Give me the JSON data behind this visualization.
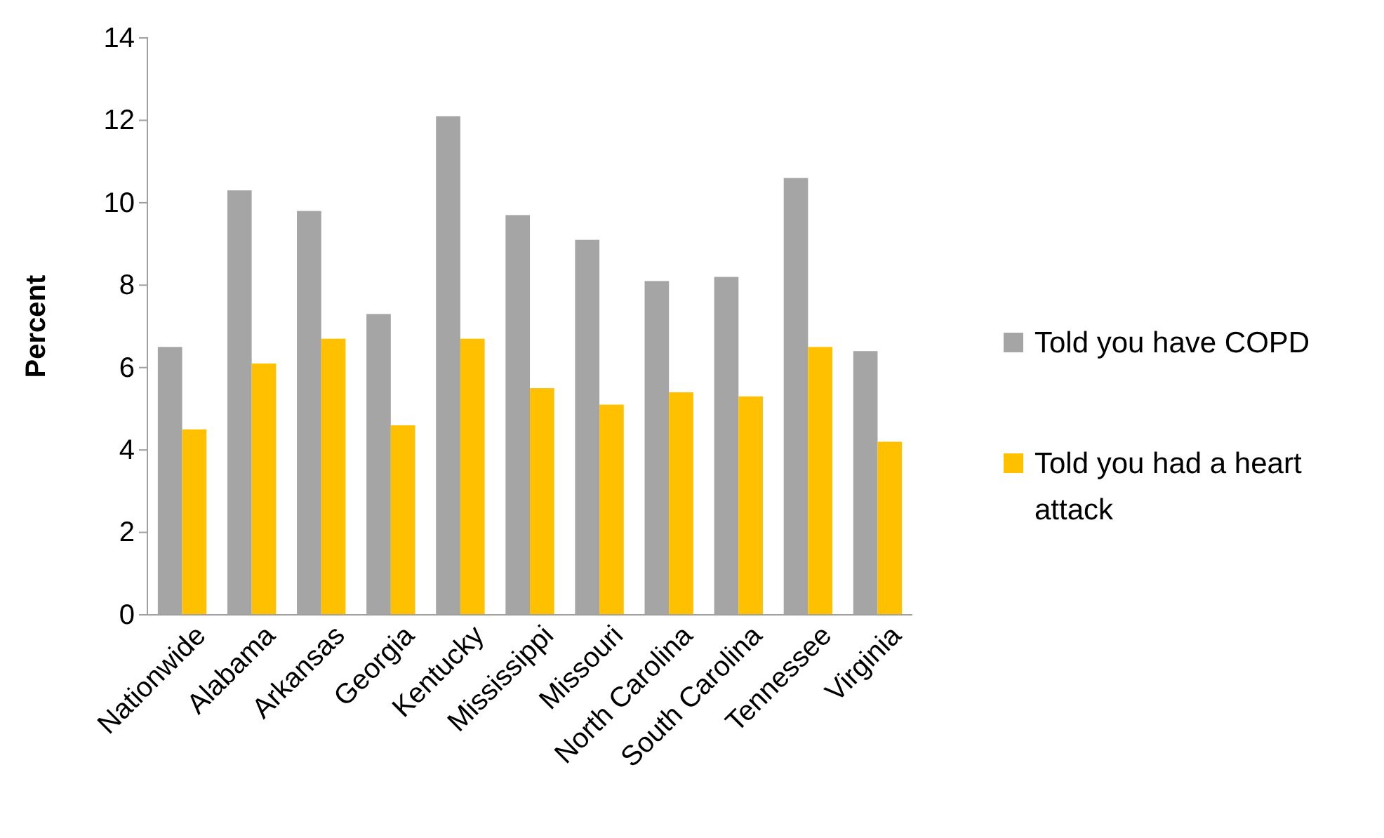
{
  "chart_data": {
    "type": "bar",
    "ylabel": "Percent",
    "categories": [
      "Nationwide",
      "Alabama",
      "Arkansas",
      "Georgia",
      "Kentucky",
      "Mississippi",
      "Missouri",
      "North Carolina",
      "South Carolina",
      "Tennessee",
      "Virginia"
    ],
    "series": [
      {
        "name": "Told you have COPD",
        "color": "#a5a5a5",
        "values": [
          6.5,
          10.3,
          9.8,
          7.3,
          12.1,
          9.7,
          9.1,
          8.1,
          8.2,
          10.6,
          6.4
        ]
      },
      {
        "name": "Told you had a heart attack",
        "color": "#ffc000",
        "values": [
          4.5,
          6.1,
          6.7,
          4.6,
          6.7,
          5.5,
          5.1,
          5.4,
          5.3,
          6.5,
          4.2
        ]
      }
    ],
    "ylim": [
      0,
      14
    ],
    "yticks": [
      0,
      2,
      4,
      6,
      8,
      10,
      12,
      14
    ],
    "grid": false,
    "legend": "right"
  }
}
